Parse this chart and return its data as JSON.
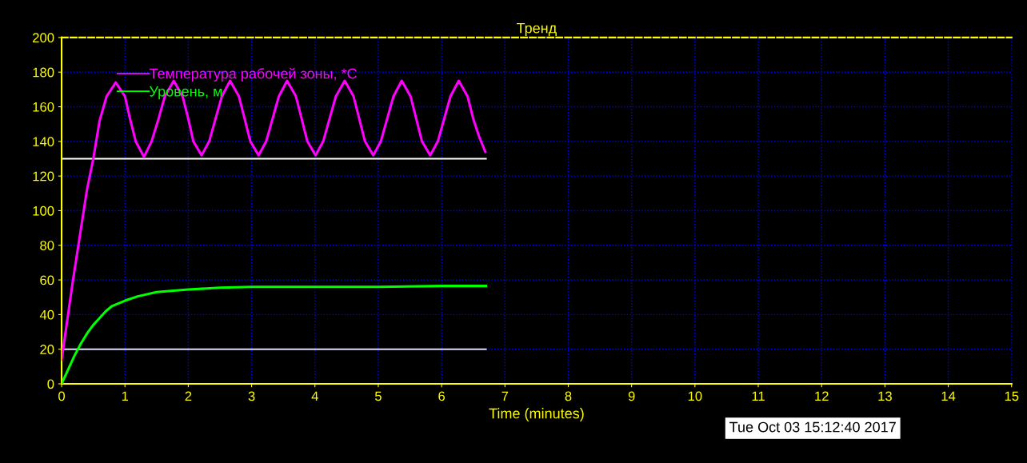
{
  "chart_data": {
    "type": "line",
    "title": "Тренд",
    "xlabel": "Time (minutes)",
    "xlim": [
      0,
      15
    ],
    "xticks": [
      0,
      1,
      2,
      3,
      4,
      5,
      6,
      7,
      8,
      9,
      10,
      11,
      12,
      13,
      14,
      15
    ],
    "ylim": [
      0,
      200
    ],
    "yticks": [
      0,
      20,
      40,
      60,
      80,
      100,
      120,
      140,
      160,
      180,
      200
    ],
    "grid": true,
    "legend": "top left",
    "line_style": "solid",
    "marker": "none",
    "series": [
      {
        "name": "Температура рабочей зоны, *C",
        "color": "#ff00ff",
        "x": [
          0,
          0.18,
          0.4,
          0.5,
          0.6,
          0.71,
          0.855,
          1.0,
          1.08,
          1.17,
          1.3,
          1.42,
          1.53,
          1.63,
          1.77,
          1.91,
          2.0,
          2.08,
          2.21,
          2.33,
          2.43,
          2.53,
          2.66,
          2.8,
          2.89,
          2.98,
          3.11,
          3.23,
          3.33,
          3.43,
          3.56,
          3.7,
          3.79,
          3.88,
          4.01,
          4.13,
          4.23,
          4.33,
          4.47,
          4.61,
          4.7,
          4.79,
          4.92,
          5.04,
          5.14,
          5.24,
          5.37,
          5.51,
          5.6,
          5.69,
          5.82,
          5.94,
          6.04,
          6.14,
          6.27,
          6.41,
          6.5,
          6.59,
          6.69
        ],
        "values": [
          14,
          60,
          112,
          130,
          152,
          166,
          174,
          166,
          153,
          140,
          131,
          140,
          153,
          166,
          175,
          166,
          153,
          140,
          132,
          140,
          153,
          166,
          175,
          166,
          153,
          140,
          132,
          140,
          153,
          166,
          175,
          166,
          153,
          140,
          132,
          140,
          153,
          166,
          175,
          166,
          153,
          140,
          132,
          140,
          153,
          166,
          175,
          166,
          153,
          140,
          132,
          140,
          153,
          166,
          175,
          166,
          153,
          143,
          134
        ]
      },
      {
        "name": "Уровень, м",
        "color": "#00ff00",
        "x": [
          0,
          0.1,
          0.2,
          0.3,
          0.4,
          0.5,
          0.6,
          0.7,
          0.8,
          1.0,
          1.2,
          1.5,
          2.0,
          2.5,
          3.0,
          4.0,
          5.0,
          6.0,
          6.7
        ],
        "values": [
          0,
          8,
          16,
          23,
          29,
          34,
          38,
          42,
          45,
          48,
          50.5,
          53,
          54.5,
          55.5,
          56,
          56,
          56,
          56.5,
          56.5
        ]
      }
    ],
    "ref_lines": [
      {
        "axis": "y",
        "value": 130,
        "color": "#ffffff"
      },
      {
        "axis": "y",
        "value": 20,
        "color": "#ddddff"
      }
    ],
    "annotations": [
      "Tue Oct 03 15:12:40 2017"
    ]
  }
}
